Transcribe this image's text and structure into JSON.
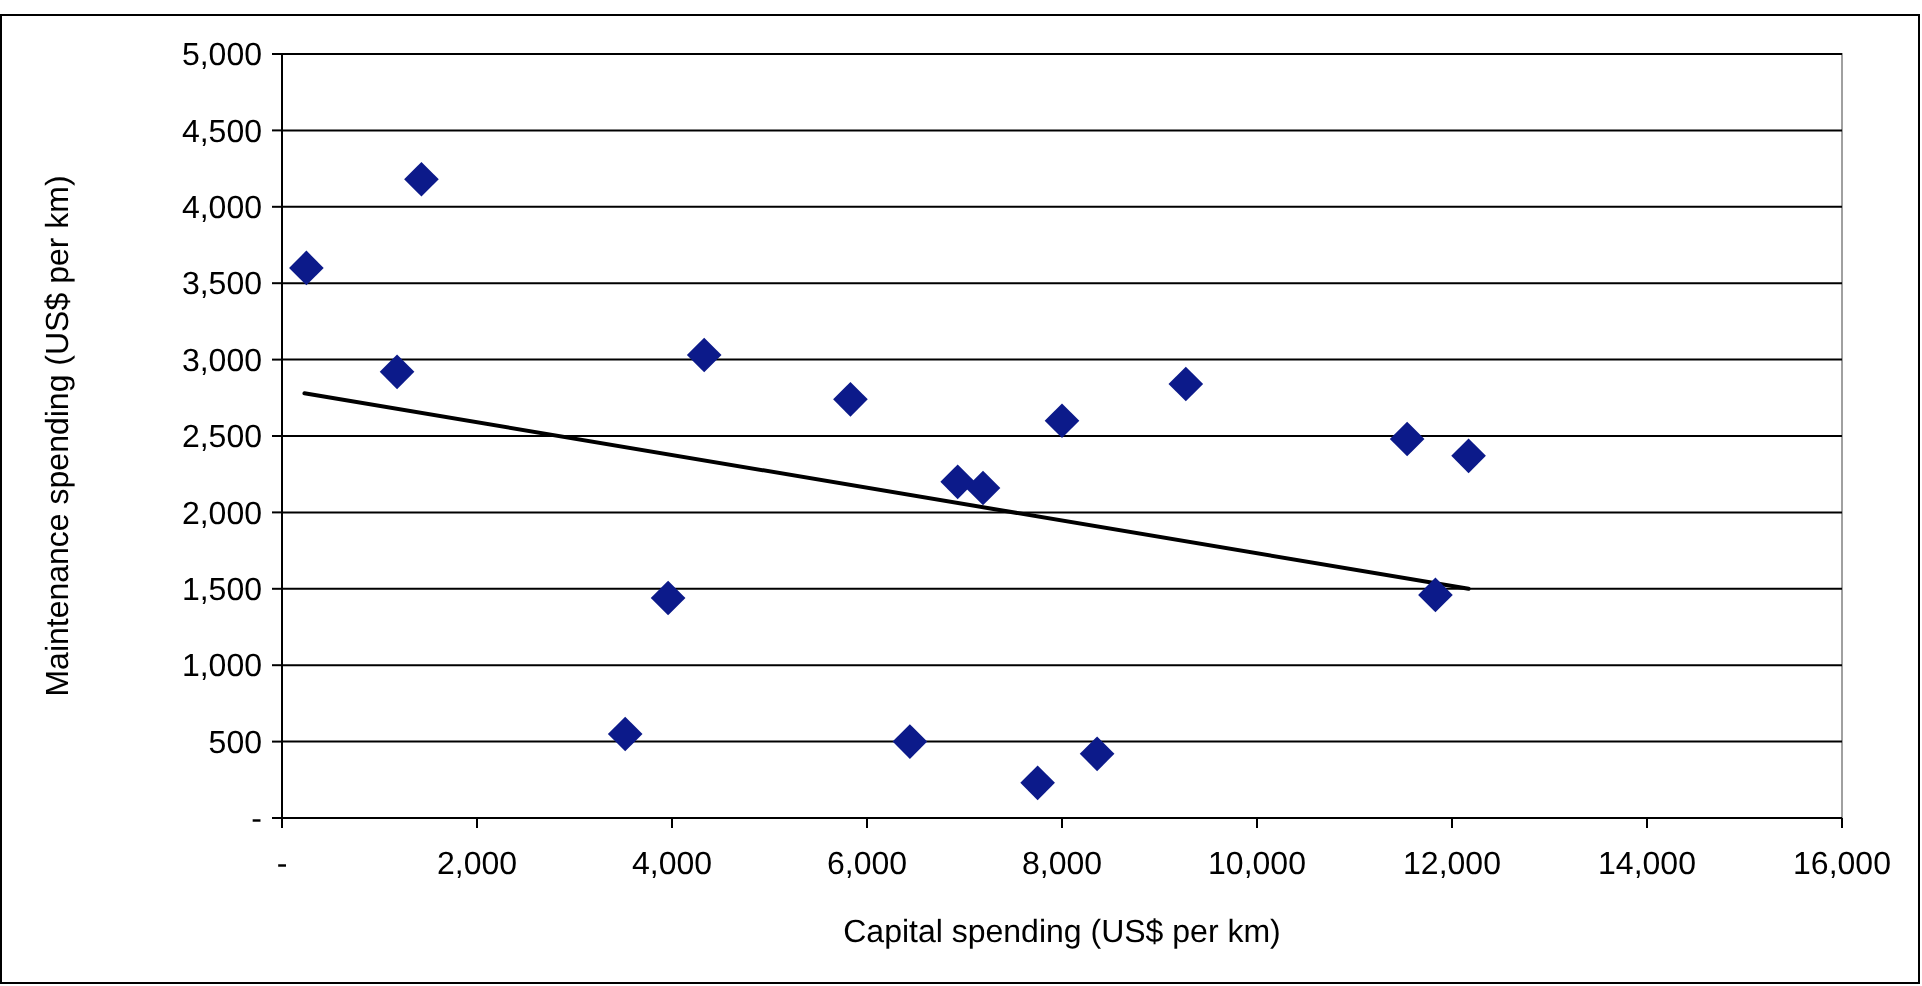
{
  "chart_data": {
    "type": "scatter",
    "xlabel": "Capital spending (US$ per km)",
    "ylabel": "Maintenance spending (US$ per km)",
    "xlim": [
      0,
      16000
    ],
    "ylim": [
      0,
      5000
    ],
    "xticks": [
      {
        "value": 0,
        "label": "-"
      },
      {
        "value": 2000,
        "label": "2,000"
      },
      {
        "value": 4000,
        "label": "4,000"
      },
      {
        "value": 6000,
        "label": "6,000"
      },
      {
        "value": 8000,
        "label": "8,000"
      },
      {
        "value": 10000,
        "label": "10,000"
      },
      {
        "value": 12000,
        "label": "12,000"
      },
      {
        "value": 14000,
        "label": "14,000"
      },
      {
        "value": 16000,
        "label": "16,000"
      }
    ],
    "yticks": [
      {
        "value": 0,
        "label": "-"
      },
      {
        "value": 500,
        "label": "500"
      },
      {
        "value": 1000,
        "label": "1,000"
      },
      {
        "value": 1500,
        "label": "1,500"
      },
      {
        "value": 2000,
        "label": "2,000"
      },
      {
        "value": 2500,
        "label": "2,500"
      },
      {
        "value": 3000,
        "label": "3,000"
      },
      {
        "value": 3500,
        "label": "3,500"
      },
      {
        "value": 4000,
        "label": "4,000"
      },
      {
        "value": 4500,
        "label": "4,500"
      },
      {
        "value": 5000,
        "label": "5,000"
      }
    ],
    "grid": "y",
    "series": [
      {
        "color": "#0c1a8a",
        "marker": "diamond",
        "x": [
          250,
          1430,
          1180,
          4330,
          3960,
          3520,
          5830,
          6440,
          6930,
          7190,
          7750,
          8000,
          8360,
          9270,
          11540,
          12170,
          11830
        ],
        "values": [
          3600,
          4180,
          2920,
          3030,
          1440,
          550,
          2740,
          500,
          2200,
          2160,
          230,
          2600,
          420,
          2840,
          2480,
          2370,
          1460
        ]
      },
      {
        "type": "line",
        "color": "#000000",
        "marker": "none",
        "line_style": "solid",
        "x": [
          230,
          12170
        ],
        "values": [
          2780,
          1500
        ]
      }
    ]
  }
}
